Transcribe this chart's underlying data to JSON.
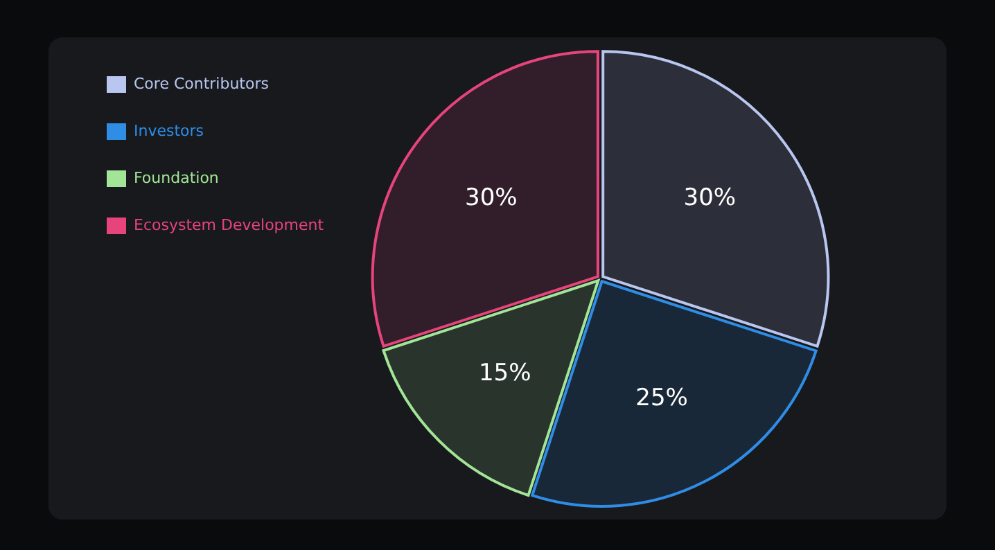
{
  "chart_data": {
    "type": "pie",
    "categories": [
      "Core Contributors",
      "Investors",
      "Foundation",
      "Ecosystem Development"
    ],
    "values": [
      30,
      25,
      15,
      30
    ],
    "colors": [
      "#b9c6ef",
      "#2f8de6",
      "#a3e596",
      "#e8447c"
    ],
    "value_labels": [
      "30%",
      "25%",
      "15%",
      "30%"
    ],
    "legend": "top left"
  }
}
